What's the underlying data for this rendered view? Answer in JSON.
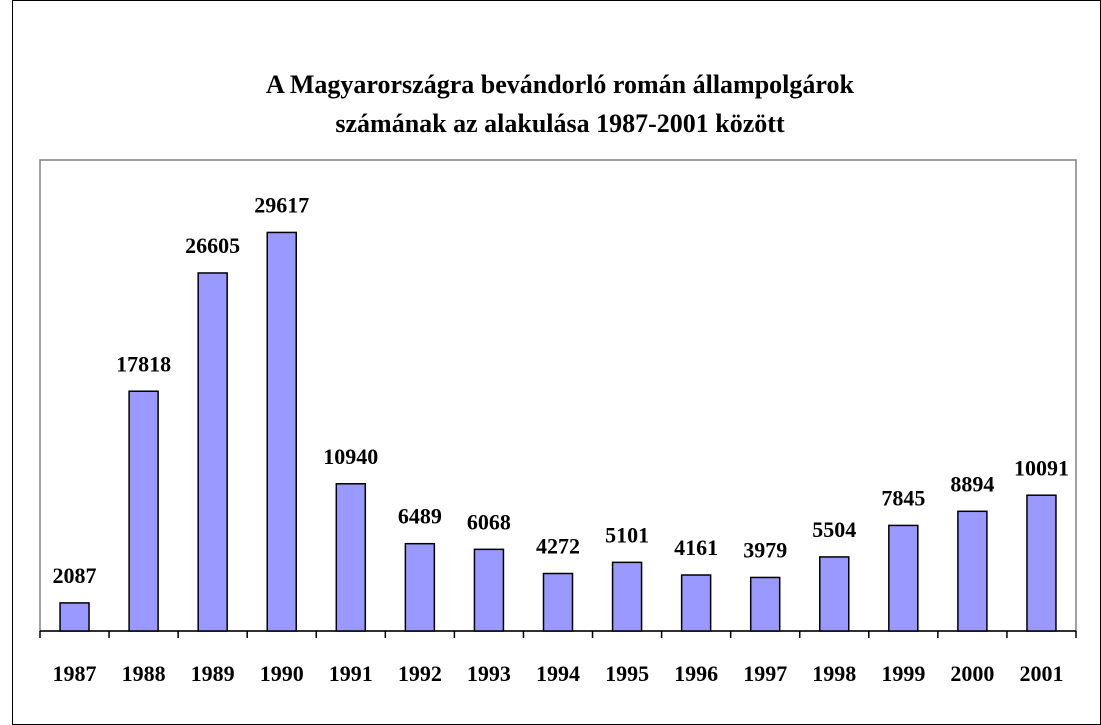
{
  "chart_data": {
    "type": "bar",
    "title": [
      "A Magyarországra bevándorló román állampolgárok",
      "számának az alakulása 1987-2001 között"
    ],
    "categories": [
      "1987",
      "1988",
      "1989",
      "1990",
      "1991",
      "1992",
      "1993",
      "1994",
      "1995",
      "1996",
      "1997",
      "1998",
      "1999",
      "2000",
      "2001"
    ],
    "values": [
      2087,
      17818,
      26605,
      29617,
      10940,
      6489,
      6068,
      4272,
      5101,
      4161,
      3979,
      5504,
      7845,
      8894,
      10091
    ],
    "color": "#9999ff",
    "ylim": [
      0,
      35000
    ]
  }
}
